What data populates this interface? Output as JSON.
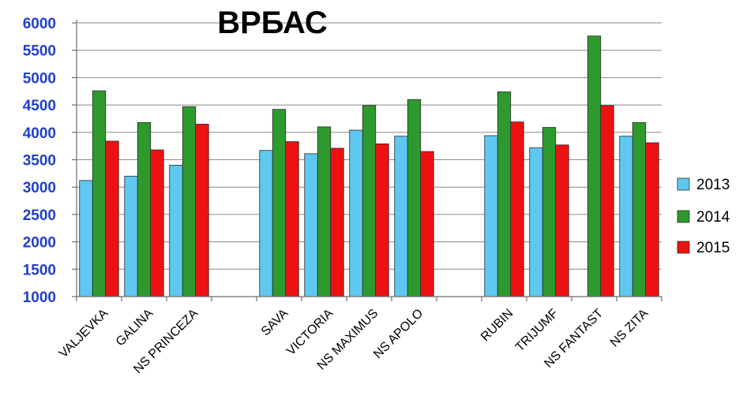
{
  "chart_data": {
    "type": "bar",
    "title": "ВРБАС",
    "xlabel": "",
    "ylabel": "",
    "ylim": [
      1000,
      6000
    ],
    "yticks": [
      1000,
      1500,
      2000,
      2500,
      3000,
      3500,
      4000,
      4500,
      5000,
      5500,
      6000
    ],
    "grid": true,
    "legend_position": "right",
    "categories": [
      "VALJEVKA",
      "GALINA",
      "NS PRINCEZA",
      "",
      "SAVA",
      "VICTORIA",
      "NS MAXIMUS",
      "NS APOLO",
      "",
      "RUBIN",
      "TRIJUMF",
      "NS FANTAST",
      "NS ZITA"
    ],
    "series": [
      {
        "name": "2013",
        "color": "#5ec8f0",
        "values": [
          3120,
          3200,
          3400,
          null,
          3670,
          3610,
          4040,
          3930,
          null,
          3940,
          3720,
          null,
          3930
        ]
      },
      {
        "name": "2014",
        "color": "#2e9a2e",
        "values": [
          4760,
          4180,
          4470,
          null,
          4420,
          4100,
          4490,
          4600,
          null,
          4740,
          4090,
          5760,
          4180
        ]
      },
      {
        "name": "2015",
        "color": "#ee1111",
        "values": [
          3840,
          3680,
          4150,
          null,
          3830,
          3710,
          3790,
          3650,
          null,
          4190,
          3770,
          4490,
          3810
        ]
      }
    ]
  }
}
